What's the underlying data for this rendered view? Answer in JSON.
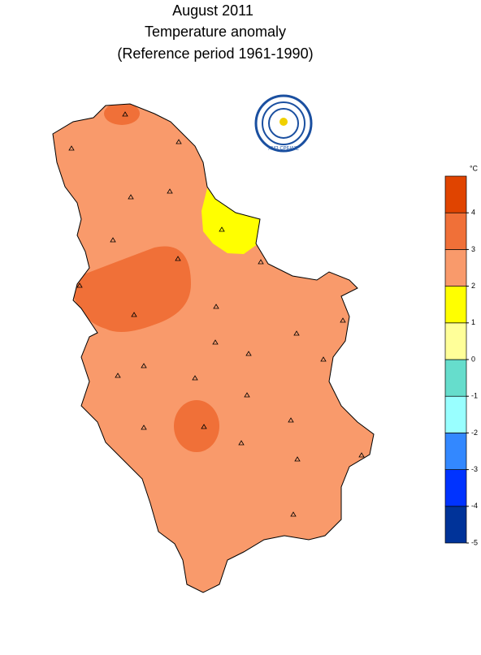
{
  "header": {
    "lines": [
      "August 2011",
      "Temperature anomaly",
      "(Reference period 1961-1990)"
    ]
  },
  "logo": {
    "text": "ХМЗ СРБИЈЕ"
  },
  "legend": {
    "unit": "°C",
    "ticks": [
      -5,
      -4,
      -3,
      -2,
      -1,
      0,
      1,
      2,
      3,
      4
    ],
    "colors": [
      "#003399",
      "#0033ff",
      "#3388ff",
      "#99ffff",
      "#66ddcc",
      "#ffff99",
      "#ffff00",
      "#f99a6b",
      "#f07038",
      "#e04400"
    ]
  }
}
